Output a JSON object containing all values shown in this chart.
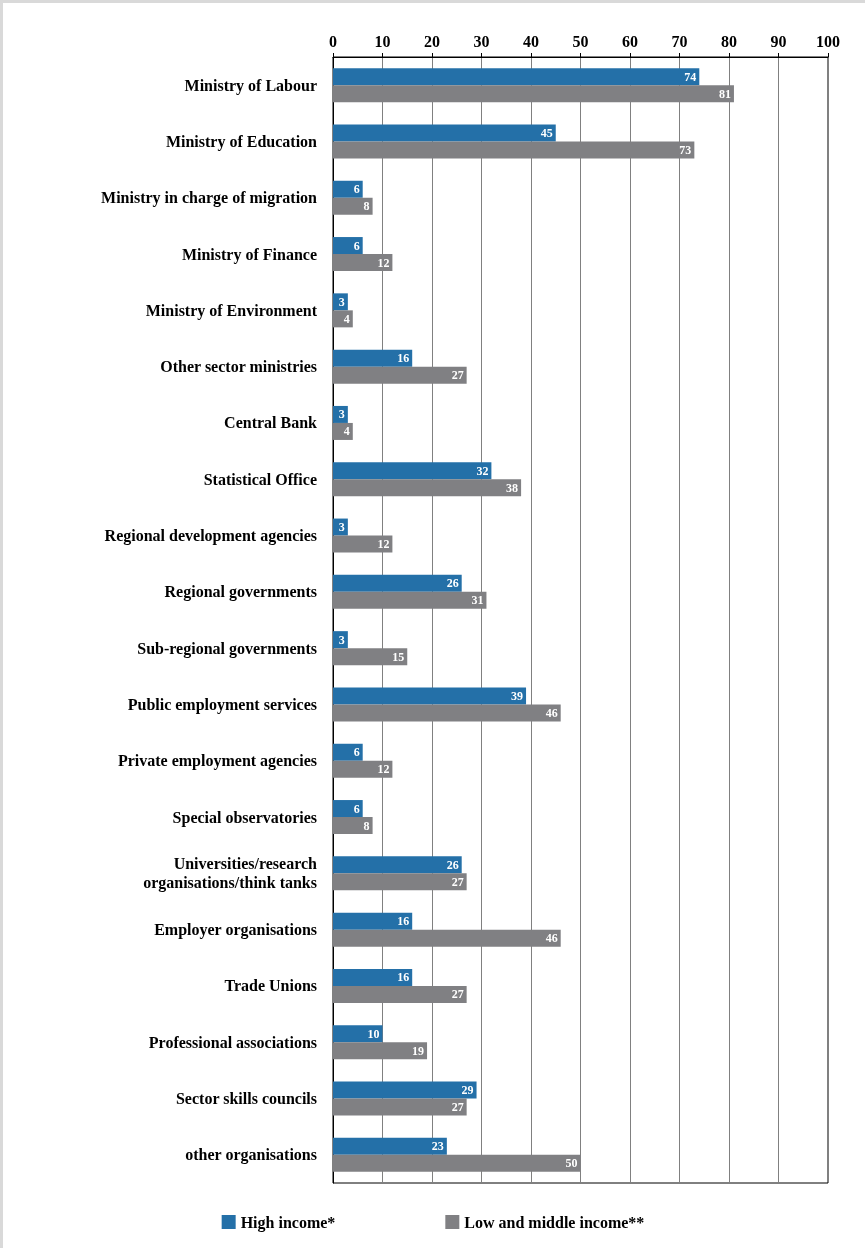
{
  "chart_data": {
    "type": "bar",
    "orientation": "horizontal",
    "categories": [
      "Ministry of Labour",
      "Ministry of Education",
      "Ministry in charge of migration",
      "Ministry of Finance",
      "Ministry of Environment",
      "Other sector ministries",
      "Central Bank",
      "Statistical Office",
      "Regional development agencies",
      "Regional governments",
      "Sub-regional governments",
      "Public employment services",
      "Private employment agencies",
      "Special observatories",
      "Universities/research\norganisations/think tanks",
      "Employer organisations",
      "Trade Unions",
      "Professional associations",
      "Sector skills councils",
      "other organisations"
    ],
    "series": [
      {
        "name": "High income*",
        "color": "#2470a8",
        "values": [
          74,
          45,
          6,
          6,
          3,
          16,
          3,
          32,
          3,
          26,
          3,
          39,
          6,
          6,
          26,
          16,
          16,
          10,
          29,
          23
        ]
      },
      {
        "name": "Low and middle income**",
        "color": "#808083",
        "values": [
          81,
          73,
          8,
          12,
          4,
          27,
          4,
          38,
          12,
          31,
          15,
          46,
          12,
          8,
          27,
          46,
          27,
          19,
          27,
          50
        ]
      }
    ],
    "xlim": [
      0,
      100
    ],
    "xticks": [
      0,
      10,
      20,
      30,
      40,
      50,
      60,
      70,
      80,
      90,
      100
    ],
    "grid": "x",
    "legend": "bottom",
    "data_labels": true
  }
}
